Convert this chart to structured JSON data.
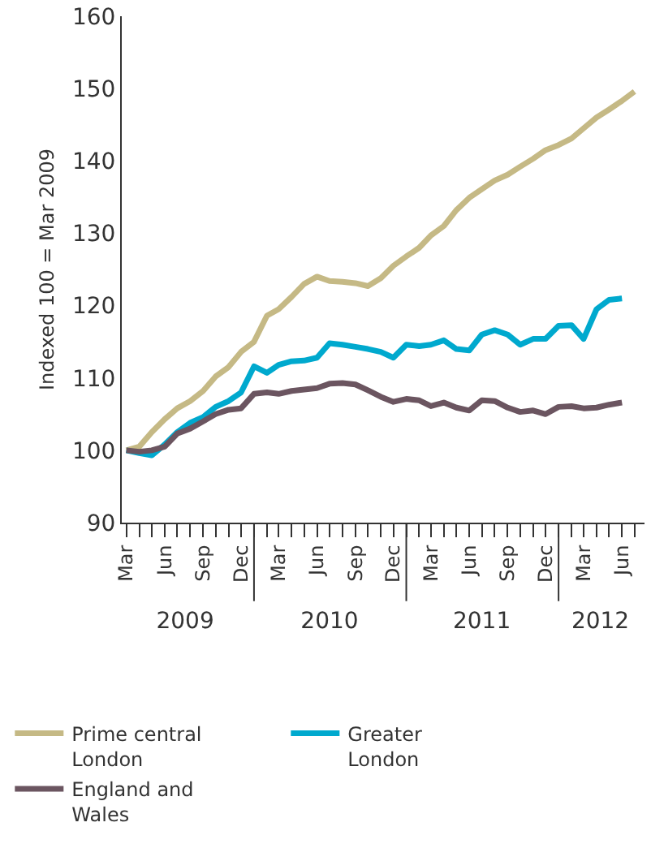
{
  "chart_data": {
    "type": "line",
    "ylabel": "Indexed 100 = Mar 2009",
    "x": [
      "2009-03",
      "2009-04",
      "2009-05",
      "2009-06",
      "2009-07",
      "2009-08",
      "2009-09",
      "2009-10",
      "2009-11",
      "2009-12",
      "2010-01",
      "2010-02",
      "2010-03",
      "2010-04",
      "2010-05",
      "2010-06",
      "2010-07",
      "2010-08",
      "2010-09",
      "2010-10",
      "2010-11",
      "2010-12",
      "2011-01",
      "2011-02",
      "2011-03",
      "2011-04",
      "2011-05",
      "2011-06",
      "2011-07",
      "2011-08",
      "2011-09",
      "2011-10",
      "2011-11",
      "2011-12",
      "2012-01",
      "2012-02",
      "2012-03",
      "2012-04",
      "2012-05",
      "2012-06",
      "2012-07"
    ],
    "series": [
      {
        "name": "Prime central London",
        "color": "#c5b985",
        "values": [
          100,
          100.5,
          102.5,
          104.3,
          105.8,
          106.8,
          108.2,
          110.2,
          111.5,
          113.6,
          115,
          118.6,
          119.5,
          121.2,
          123,
          124,
          123.4,
          123.3,
          123.1,
          122.7,
          123.8,
          125.5,
          126.8,
          128,
          129.7,
          131,
          133.2,
          134.9,
          136.1,
          137.3,
          138.1,
          139.2,
          140.3,
          141.5,
          142.2,
          143.1,
          144.5,
          146,
          147.1,
          148.3,
          149.6
        ]
      },
      {
        "name": "Greater London",
        "color": "#00a9ce",
        "values": [
          100,
          99.6,
          99.3,
          100.8,
          102.5,
          103.8,
          104.6,
          106,
          106.8,
          108,
          111.6,
          110.7,
          111.8,
          112.3,
          112.4,
          112.8,
          114.8,
          114.6,
          114.3,
          114,
          113.6,
          112.8,
          114.6,
          114.4,
          114.6,
          115.2,
          114,
          113.8,
          116,
          116.6,
          116,
          114.6,
          115.4,
          115.4,
          117.2,
          117.3,
          115.4,
          119.5,
          120.8,
          121,
          null
        ]
      },
      {
        "name": "England and Wales",
        "color": "#6b5560",
        "values": [
          100,
          99.8,
          100,
          100.5,
          102.3,
          103,
          104,
          105,
          105.6,
          105.8,
          107.8,
          108,
          107.8,
          108.2,
          108.4,
          108.6,
          109.2,
          109.3,
          109.1,
          108.3,
          107.4,
          106.7,
          107.1,
          106.9,
          106.1,
          106.6,
          105.9,
          105.5,
          106.9,
          106.8,
          105.9,
          105.3,
          105.5,
          105,
          106,
          106.1,
          105.8,
          105.9,
          106.3,
          106.6,
          null
        ]
      }
    ],
    "xlim": [
      "2009-02-18",
      "2012-07-25"
    ],
    "xticks": [
      {
        "value": "2009-03-01",
        "label": "Mar"
      },
      {
        "value": "2009-04-01",
        "label": null
      },
      {
        "value": "2009-05-01",
        "label": null
      },
      {
        "value": "2009-06-01",
        "label": "Jun"
      },
      {
        "value": "2009-07-01",
        "label": null
      },
      {
        "value": "2009-08-01",
        "label": null
      },
      {
        "value": "2009-09-01",
        "label": "Sep"
      },
      {
        "value": "2009-10-01",
        "label": null
      },
      {
        "value": "2009-11-01",
        "label": null
      },
      {
        "value": "2009-12-01",
        "label": "Dec"
      },
      {
        "value": "2010-01-01",
        "label": null
      },
      {
        "value": "2010-02-01",
        "label": null
      },
      {
        "value": "2010-03-01",
        "label": "Mar"
      },
      {
        "value": "2010-04-01",
        "label": null
      },
      {
        "value": "2010-05-01",
        "label": null
      },
      {
        "value": "2010-06-01",
        "label": "Jun"
      },
      {
        "value": "2010-07-01",
        "label": null
      },
      {
        "value": "2010-08-01",
        "label": null
      },
      {
        "value": "2010-09-01",
        "label": "Sep"
      },
      {
        "value": "2010-10-01",
        "label": null
      },
      {
        "value": "2010-11-01",
        "label": null
      },
      {
        "value": "2010-12-01",
        "label": "Dec"
      },
      {
        "value": "2011-01-01",
        "label": null
      },
      {
        "value": "2011-02-01",
        "label": null
      },
      {
        "value": "2011-03-01",
        "label": "Mar"
      },
      {
        "value": "2011-04-01",
        "label": null
      },
      {
        "value": "2011-05-01",
        "label": null
      },
      {
        "value": "2011-06-01",
        "label": "Jun"
      },
      {
        "value": "2011-07-01",
        "label": null
      },
      {
        "value": "2011-08-01",
        "label": null
      },
      {
        "value": "2011-09-01",
        "label": "Sep"
      },
      {
        "value": "2011-10-01",
        "label": null
      },
      {
        "value": "2011-11-01",
        "label": null
      },
      {
        "value": "2011-12-01",
        "label": "Dec"
      },
      {
        "value": "2012-01-01",
        "label": null
      },
      {
        "value": "2012-02-01",
        "label": null
      },
      {
        "value": "2012-03-01",
        "label": "Mar"
      },
      {
        "value": "2012-04-01",
        "label": null
      },
      {
        "value": "2012-05-01",
        "label": null
      },
      {
        "value": "2012-06-01",
        "label": "Jun"
      },
      {
        "value": "2012-07-01",
        "label": null
      }
    ],
    "x2lim": [
      "2009-02-18",
      "2012-07-25"
    ],
    "x2ticks": [
      {
        "value": "2009-07-20",
        "label": "2009"
      },
      {
        "value": "2010-01-01",
        "label": null
      },
      {
        "value": "2010-07-01",
        "label": "2010"
      },
      {
        "value": "2011-01-01",
        "label": null
      },
      {
        "value": "2011-07-01",
        "label": "2011"
      },
      {
        "value": "2012-01-01",
        "label": null
      },
      {
        "value": "2012-04-10",
        "label": "2012"
      }
    ],
    "ylim": [
      90,
      160
    ],
    "yticks": [
      90,
      100,
      110,
      120,
      130,
      140,
      150,
      160
    ],
    "grid": false,
    "legend": "bottom",
    "line_style": "solid",
    "marker": "none"
  }
}
